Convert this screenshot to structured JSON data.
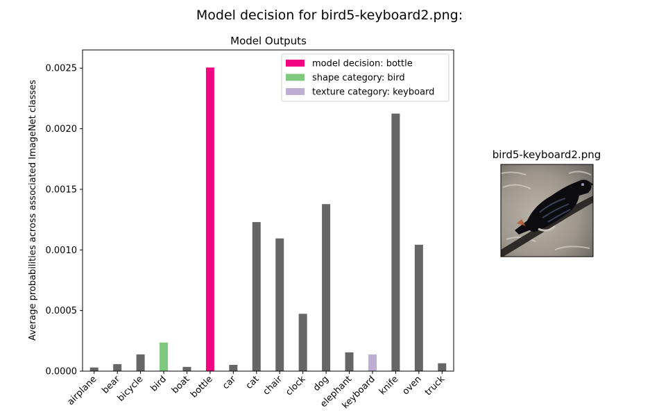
{
  "figure": {
    "suptitle": "Model decision for bird5-keyboard2.png:"
  },
  "chart_data": {
    "type": "bar",
    "title": "Model Outputs",
    "xlabel": "",
    "ylabel": "Average probabilities across associated ImageNet classes",
    "ylim": [
      0,
      0.00265
    ],
    "yticks": [
      "0.0000",
      "0.0005",
      "0.0010",
      "0.0015",
      "0.0020",
      "0.0025"
    ],
    "ytick_values": [
      0,
      0.0005,
      0.001,
      0.0015,
      0.002,
      0.0025
    ],
    "grid": false,
    "legend_position": "top-right",
    "categories": [
      "airplane",
      "bear",
      "bicycle",
      "bird",
      "boat",
      "bottle",
      "car",
      "cat",
      "chair",
      "clock",
      "dog",
      "elephant",
      "keyboard",
      "knife",
      "oven",
      "truck"
    ],
    "values": [
      3e-05,
      5.8e-05,
      0.000138,
      0.000236,
      3.5e-05,
      0.002505,
      5.2e-05,
      0.00123,
      0.001095,
      0.000473,
      0.001378,
      0.000155,
      0.000138,
      0.002125,
      0.001043,
      6.5e-05
    ],
    "colors": {
      "default": "#666666",
      "model_decision": "#f0047f",
      "shape_category": "#7fc97f",
      "texture_category": "#beaed4"
    },
    "highlight": {
      "model_decision": "bottle",
      "shape_category": "bird",
      "texture_category": "keyboard"
    },
    "legend": [
      {
        "label": "model decision: bottle",
        "color": "#f0047f"
      },
      {
        "label": "shape category: bird",
        "color": "#7fc97f"
      },
      {
        "label": "texture category: keyboard",
        "color": "#beaed4"
      }
    ]
  },
  "image_panel": {
    "title": "bird5-keyboard2.png"
  }
}
